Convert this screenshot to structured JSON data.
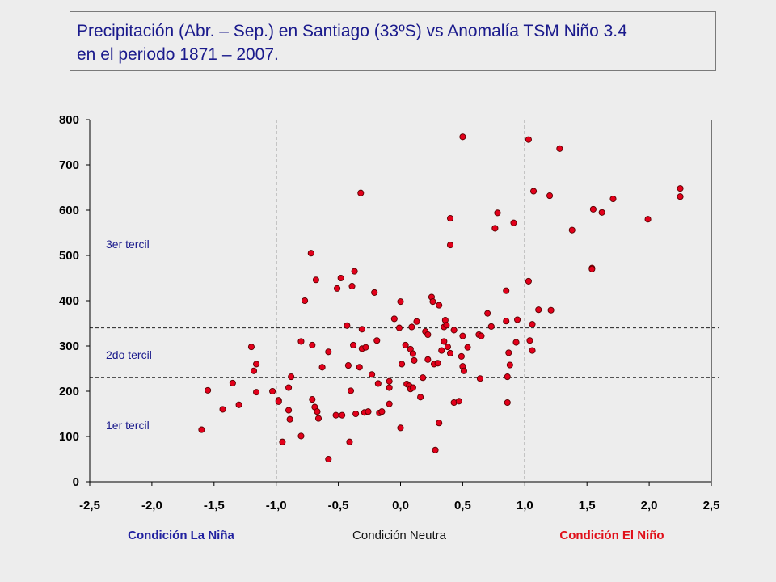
{
  "title": {
    "line1": "Precipitación (Abr. – Sep.) en Santiago (33ºS) vs Anomalía TSM Niño 3.4",
    "line2": "en el periodo 1871 – 2007."
  },
  "colors": {
    "point_fill": "#e3001b",
    "point_stroke": "#5a0000",
    "title_text": "#1a1a8c",
    "la_nina": "#2222a0",
    "neutral": "#111111",
    "el_nino": "#e0101a",
    "plot_background": "#ededed"
  },
  "chart_data": {
    "type": "scatter",
    "title": "Precipitación (Abr. – Sep.) en Santiago (33ºS) vs Anomalía TSM Niño 3.4 en el periodo 1871 – 2007.",
    "xlim": [
      -2.5,
      2.5
    ],
    "ylim": [
      0,
      800
    ],
    "x_ticks": [
      -2.5,
      -2.0,
      -1.5,
      -1.0,
      -0.5,
      0.0,
      0.5,
      1.0,
      1.5,
      2.0,
      2.5
    ],
    "x_tick_labels": [
      "-2,5",
      "-2,0",
      "-1,5",
      "-1,0",
      "-0,5",
      "0,0",
      "0,5",
      "1,0",
      "1,5",
      "2,0",
      "2,5"
    ],
    "y_ticks": [
      0,
      100,
      200,
      300,
      400,
      500,
      600,
      700,
      800
    ],
    "y_tick_labels": [
      "0",
      "100",
      "200",
      "300",
      "400",
      "500",
      "600",
      "700",
      "800"
    ],
    "grid": false,
    "vertical_lines": [
      -1.0,
      1.0
    ],
    "horizontal_lines": [
      230,
      340
    ],
    "tercile_labels": [
      {
        "text": "3er tercil",
        "y": 525
      },
      {
        "text": "2do tercil",
        "y": 280
      },
      {
        "text": "1er tercil",
        "y": 125
      }
    ],
    "condition_labels": [
      {
        "text": "Condición La Niña",
        "key": "la_nina"
      },
      {
        "text": "Condición Neutra",
        "key": "neutral"
      },
      {
        "text": "Condición El Niño",
        "key": "el_nino"
      }
    ],
    "points": [
      [
        -1.6,
        115
      ],
      [
        -1.55,
        202
      ],
      [
        -1.43,
        160
      ],
      [
        -1.35,
        218
      ],
      [
        -1.3,
        170
      ],
      [
        -1.2,
        298
      ],
      [
        -1.18,
        245
      ],
      [
        -1.16,
        260
      ],
      [
        -1.16,
        198
      ],
      [
        -1.03,
        200
      ],
      [
        -0.98,
        180
      ],
      [
        -0.98,
        177
      ],
      [
        -0.95,
        88
      ],
      [
        -0.9,
        208
      ],
      [
        -0.9,
        158
      ],
      [
        -0.88,
        232
      ],
      [
        -0.89,
        138
      ],
      [
        -0.8,
        310
      ],
      [
        -0.8,
        101
      ],
      [
        -0.77,
        400
      ],
      [
        -0.72,
        505
      ],
      [
        -0.71,
        302
      ],
      [
        -0.71,
        182
      ],
      [
        -0.69,
        165
      ],
      [
        -0.68,
        446
      ],
      [
        -0.67,
        155
      ],
      [
        -0.66,
        140
      ],
      [
        -0.63,
        253
      ],
      [
        -0.58,
        50
      ],
      [
        -0.58,
        287
      ],
      [
        -0.52,
        147
      ],
      [
        -0.51,
        427
      ],
      [
        -0.48,
        450
      ],
      [
        -0.47,
        147
      ],
      [
        -0.43,
        345
      ],
      [
        -0.42,
        257
      ],
      [
        -0.41,
        88
      ],
      [
        -0.4,
        201
      ],
      [
        -0.39,
        432
      ],
      [
        -0.38,
        302
      ],
      [
        -0.37,
        465
      ],
      [
        -0.36,
        150
      ],
      [
        -0.32,
        638
      ],
      [
        -0.33,
        253
      ],
      [
        -0.31,
        337
      ],
      [
        -0.31,
        294
      ],
      [
        -0.29,
        153
      ],
      [
        -0.28,
        297
      ],
      [
        -0.26,
        155
      ],
      [
        -0.23,
        237
      ],
      [
        -0.21,
        418
      ],
      [
        -0.19,
        312
      ],
      [
        -0.18,
        217
      ],
      [
        -0.17,
        152
      ],
      [
        -0.15,
        155
      ],
      [
        -0.09,
        172
      ],
      [
        -0.09,
        222
      ],
      [
        -0.09,
        208
      ],
      [
        -0.05,
        360
      ],
      [
        -0.01,
        340
      ],
      [
        0.0,
        119
      ],
      [
        0.0,
        398
      ],
      [
        0.01,
        260
      ],
      [
        0.04,
        302
      ],
      [
        0.05,
        216
      ],
      [
        0.07,
        212
      ],
      [
        0.08,
        205
      ],
      [
        0.08,
        293
      ],
      [
        0.09,
        342
      ],
      [
        0.1,
        208
      ],
      [
        0.1,
        283
      ],
      [
        0.11,
        268
      ],
      [
        0.13,
        354
      ],
      [
        0.16,
        187
      ],
      [
        0.18,
        230
      ],
      [
        0.2,
        332
      ],
      [
        0.22,
        325
      ],
      [
        0.22,
        270
      ],
      [
        0.25,
        408
      ],
      [
        0.26,
        398
      ],
      [
        0.27,
        260
      ],
      [
        0.28,
        70
      ],
      [
        0.3,
        262
      ],
      [
        0.31,
        130
      ],
      [
        0.31,
        390
      ],
      [
        0.33,
        290
      ],
      [
        0.35,
        342
      ],
      [
        0.35,
        310
      ],
      [
        0.36,
        357
      ],
      [
        0.37,
        346
      ],
      [
        0.38,
        298
      ],
      [
        0.4,
        284
      ],
      [
        0.4,
        582
      ],
      [
        0.4,
        523
      ],
      [
        0.43,
        175
      ],
      [
        0.43,
        335
      ],
      [
        0.47,
        178
      ],
      [
        0.49,
        277
      ],
      [
        0.5,
        322
      ],
      [
        0.5,
        762
      ],
      [
        0.5,
        255
      ],
      [
        0.51,
        245
      ],
      [
        0.54,
        297
      ],
      [
        0.63,
        325
      ],
      [
        0.64,
        228
      ],
      [
        0.65,
        322
      ],
      [
        0.7,
        372
      ],
      [
        0.73,
        343
      ],
      [
        0.76,
        560
      ],
      [
        0.78,
        594
      ],
      [
        0.85,
        422
      ],
      [
        0.85,
        355
      ],
      [
        0.86,
        232
      ],
      [
        0.86,
        175
      ],
      [
        0.87,
        285
      ],
      [
        0.88,
        258
      ],
      [
        0.91,
        572
      ],
      [
        0.93,
        308
      ],
      [
        0.94,
        358
      ],
      [
        1.03,
        756
      ],
      [
        1.03,
        443
      ],
      [
        1.04,
        312
      ],
      [
        1.06,
        348
      ],
      [
        1.06,
        290
      ],
      [
        1.07,
        642
      ],
      [
        1.11,
        380
      ],
      [
        1.2,
        632
      ],
      [
        1.21,
        379
      ],
      [
        1.28,
        736
      ],
      [
        1.38,
        556
      ],
      [
        1.54,
        472
      ],
      [
        1.54,
        470
      ],
      [
        1.55,
        602
      ],
      [
        1.62,
        595
      ],
      [
        1.71,
        625
      ],
      [
        1.99,
        580
      ],
      [
        2.25,
        648
      ],
      [
        2.25,
        630
      ]
    ]
  }
}
